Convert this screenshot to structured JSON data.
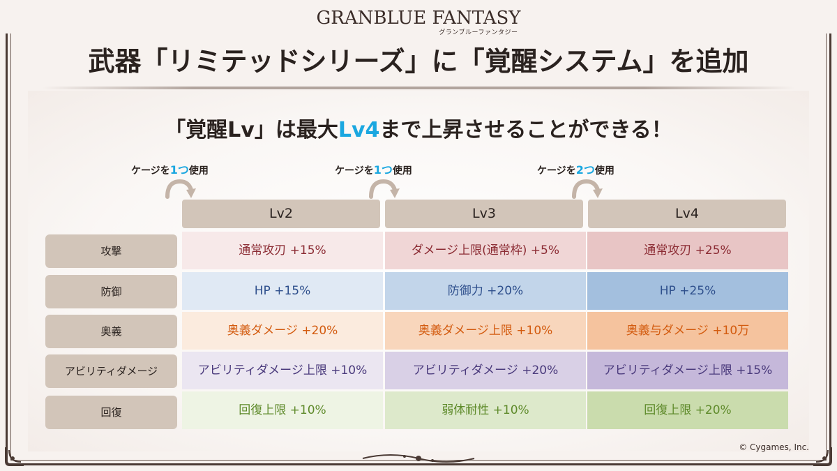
{
  "logo": {
    "title": "GRANBLUE FANTASY",
    "subtitle": "グランブルーファンタジー"
  },
  "header": {
    "title": "武器「リミテッドシリーズ」に「覚醒システム」を追加"
  },
  "subtitle": {
    "before": "「覚醒Lv」は最大",
    "highlight": "Lv4",
    "after": "まで上昇させることができる！"
  },
  "gauges": [
    {
      "prefix": "ケージを",
      "count": "1つ",
      "suffix": "使用"
    },
    {
      "prefix": "ケージを",
      "count": "1つ",
      "suffix": "使用"
    },
    {
      "prefix": "ケージを",
      "count": "2つ",
      "suffix": "使用"
    }
  ],
  "levels": [
    "Lv2",
    "Lv3",
    "Lv4"
  ],
  "rows": [
    {
      "label": "攻撃",
      "values": [
        "通常攻刃 +15%",
        "ダメージ上限(通常枠) +5%",
        "通常攻刃 +25%"
      ],
      "colors": [
        "#f7e9e9",
        "#f0d6d6",
        "#e8c5c5"
      ],
      "text_color": "#8b2b33"
    },
    {
      "label": "防御",
      "values": [
        "HP +15%",
        "防御力 +20%",
        "HP +25%"
      ],
      "colors": [
        "#e0e9f4",
        "#c2d5ea",
        "#a3bfde"
      ],
      "text_color": "#2e4f8c"
    },
    {
      "label": "奥義",
      "values": [
        "奥義ダメージ +20%",
        "奥義ダメージ上限 +10%",
        "奥義与ダメージ +10万"
      ],
      "colors": [
        "#fbebde",
        "#f8d6bc",
        "#f5c39e"
      ],
      "text_color": "#d35b0f"
    },
    {
      "label": "アビリティダメージ",
      "values": [
        "アビリティダメージ上限 +10%",
        "アビリティダメージ +20%",
        "アビリティダメージ上限 +15%"
      ],
      "colors": [
        "#ebe6f1",
        "#d9d0e6",
        "#c5b8da"
      ],
      "text_color": "#4a3a7c"
    },
    {
      "label": "回復",
      "values": [
        "回復上限 +10%",
        "弱体耐性 +10%",
        "回復上限 +20%"
      ],
      "colors": [
        "#eef4e4",
        "#dde9cb",
        "#cadcad"
      ],
      "text_color": "#5e8a2a"
    }
  ],
  "footer": {
    "copyright": "© Cygames, Inc."
  }
}
